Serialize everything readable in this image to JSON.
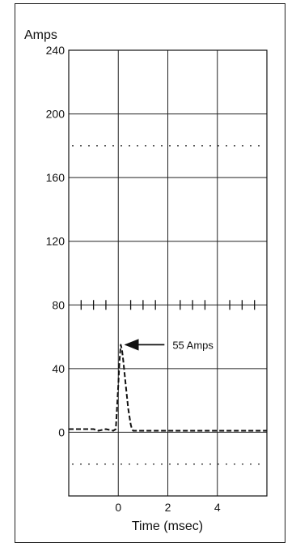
{
  "chart_data": {
    "type": "line",
    "ylabel": "Amps",
    "xlabel": "Time (msec)",
    "xlim": [
      -2,
      6
    ],
    "ylim": [
      -40,
      240
    ],
    "y_ticks": [
      0,
      40,
      80,
      120,
      160,
      200,
      240
    ],
    "y_tick_labels": [
      "0",
      "40",
      "80",
      "120",
      "160",
      "200",
      "240"
    ],
    "x_ticks": [
      0,
      2,
      4
    ],
    "x_tick_labels": [
      "0",
      "2",
      "4"
    ],
    "x_gridlines": [
      -2,
      0,
      2,
      4,
      6
    ],
    "grid": true,
    "dotted_reference_lines": [
      180,
      -20
    ],
    "trigger_marks": {
      "y": 80,
      "x": [
        -1.5,
        -1.0,
        -0.5,
        0.5,
        1.0,
        1.5,
        2.5,
        3.0,
        3.5,
        4.5,
        5.0,
        5.5
      ]
    },
    "series": [
      {
        "style": "dashed",
        "x": [
          -2.0,
          -1.5,
          -1.0,
          -0.8,
          -0.5,
          -0.2,
          -0.1,
          0.0,
          0.05,
          0.1,
          0.15,
          0.2,
          0.3,
          0.4,
          0.5,
          0.55,
          0.6,
          0.7,
          0.8,
          1.0,
          1.5,
          2.0,
          2.5,
          3.0,
          3.5,
          4.0,
          4.5,
          5.0,
          5.5,
          6.0
        ],
        "y": [
          2,
          2,
          2,
          1,
          2,
          1,
          2,
          30,
          45,
          55,
          52,
          45,
          30,
          15,
          5,
          2,
          1,
          1,
          1,
          1,
          1,
          1,
          1,
          1,
          1,
          1,
          1,
          1,
          1,
          1
        ]
      }
    ],
    "annotations": [
      {
        "text": "55 Amps",
        "x": 0.1,
        "y": 55
      }
    ]
  }
}
